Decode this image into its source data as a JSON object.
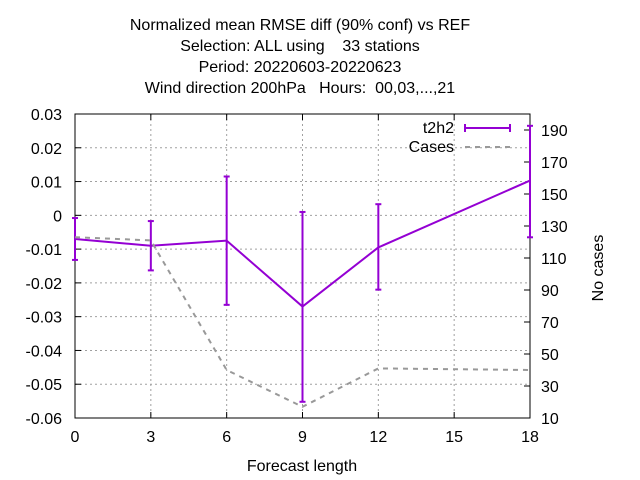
{
  "chart_data": {
    "type": "line",
    "title_lines": [
      "Normalized mean RMSE diff (90% conf) vs REF",
      "Selection: ALL using    33 stations",
      "Period: 20220603-20220623",
      "Wind direction 200hPa   Hours:  00,03,...,21"
    ],
    "xlabel": "Forecast length",
    "ylabel": "",
    "y2label": "No cases",
    "xlim": [
      0,
      18
    ],
    "ylim": [
      -0.06,
      0.03
    ],
    "y2lim": [
      10,
      200
    ],
    "x_ticks": [
      0,
      3,
      6,
      9,
      12,
      15,
      18
    ],
    "y_ticks": [
      {
        "v": 0.03,
        "label": "0.03"
      },
      {
        "v": 0.02,
        "label": "0.02"
      },
      {
        "v": 0.01,
        "label": "0.01"
      },
      {
        "v": 0,
        "label": "0"
      },
      {
        "v": -0.01,
        "label": "-0.01"
      },
      {
        "v": -0.02,
        "label": "-0.02"
      },
      {
        "v": -0.03,
        "label": "-0.03"
      },
      {
        "v": -0.04,
        "label": "-0.04"
      },
      {
        "v": -0.05,
        "label": "-0.05"
      },
      {
        "v": -0.06,
        "label": "-0.06"
      }
    ],
    "y2_ticks": [
      190,
      170,
      150,
      130,
      110,
      90,
      70,
      50,
      30,
      10
    ],
    "grid": true,
    "legend_position": "top-right",
    "series": [
      {
        "name": "t2h2",
        "axis": "y",
        "color": "#9400d3",
        "x": [
          0,
          3,
          6,
          9,
          12,
          18
        ],
        "y": [
          -0.007,
          -0.009,
          -0.0075,
          -0.027,
          -0.0095,
          0.0103
        ],
        "err_low": [
          -0.0132,
          -0.0163,
          -0.0265,
          -0.0552,
          -0.022,
          -0.0065
        ],
        "err_high": [
          -0.0008,
          -0.0017,
          0.0115,
          0.001,
          0.0033,
          0.0265
        ]
      },
      {
        "name": "Cases",
        "axis": "y2",
        "color": "#999999",
        "dashed": true,
        "x": [
          0,
          3,
          6,
          9,
          12,
          18
        ],
        "y": [
          123,
          121,
          40,
          17,
          41,
          40
        ]
      }
    ]
  }
}
